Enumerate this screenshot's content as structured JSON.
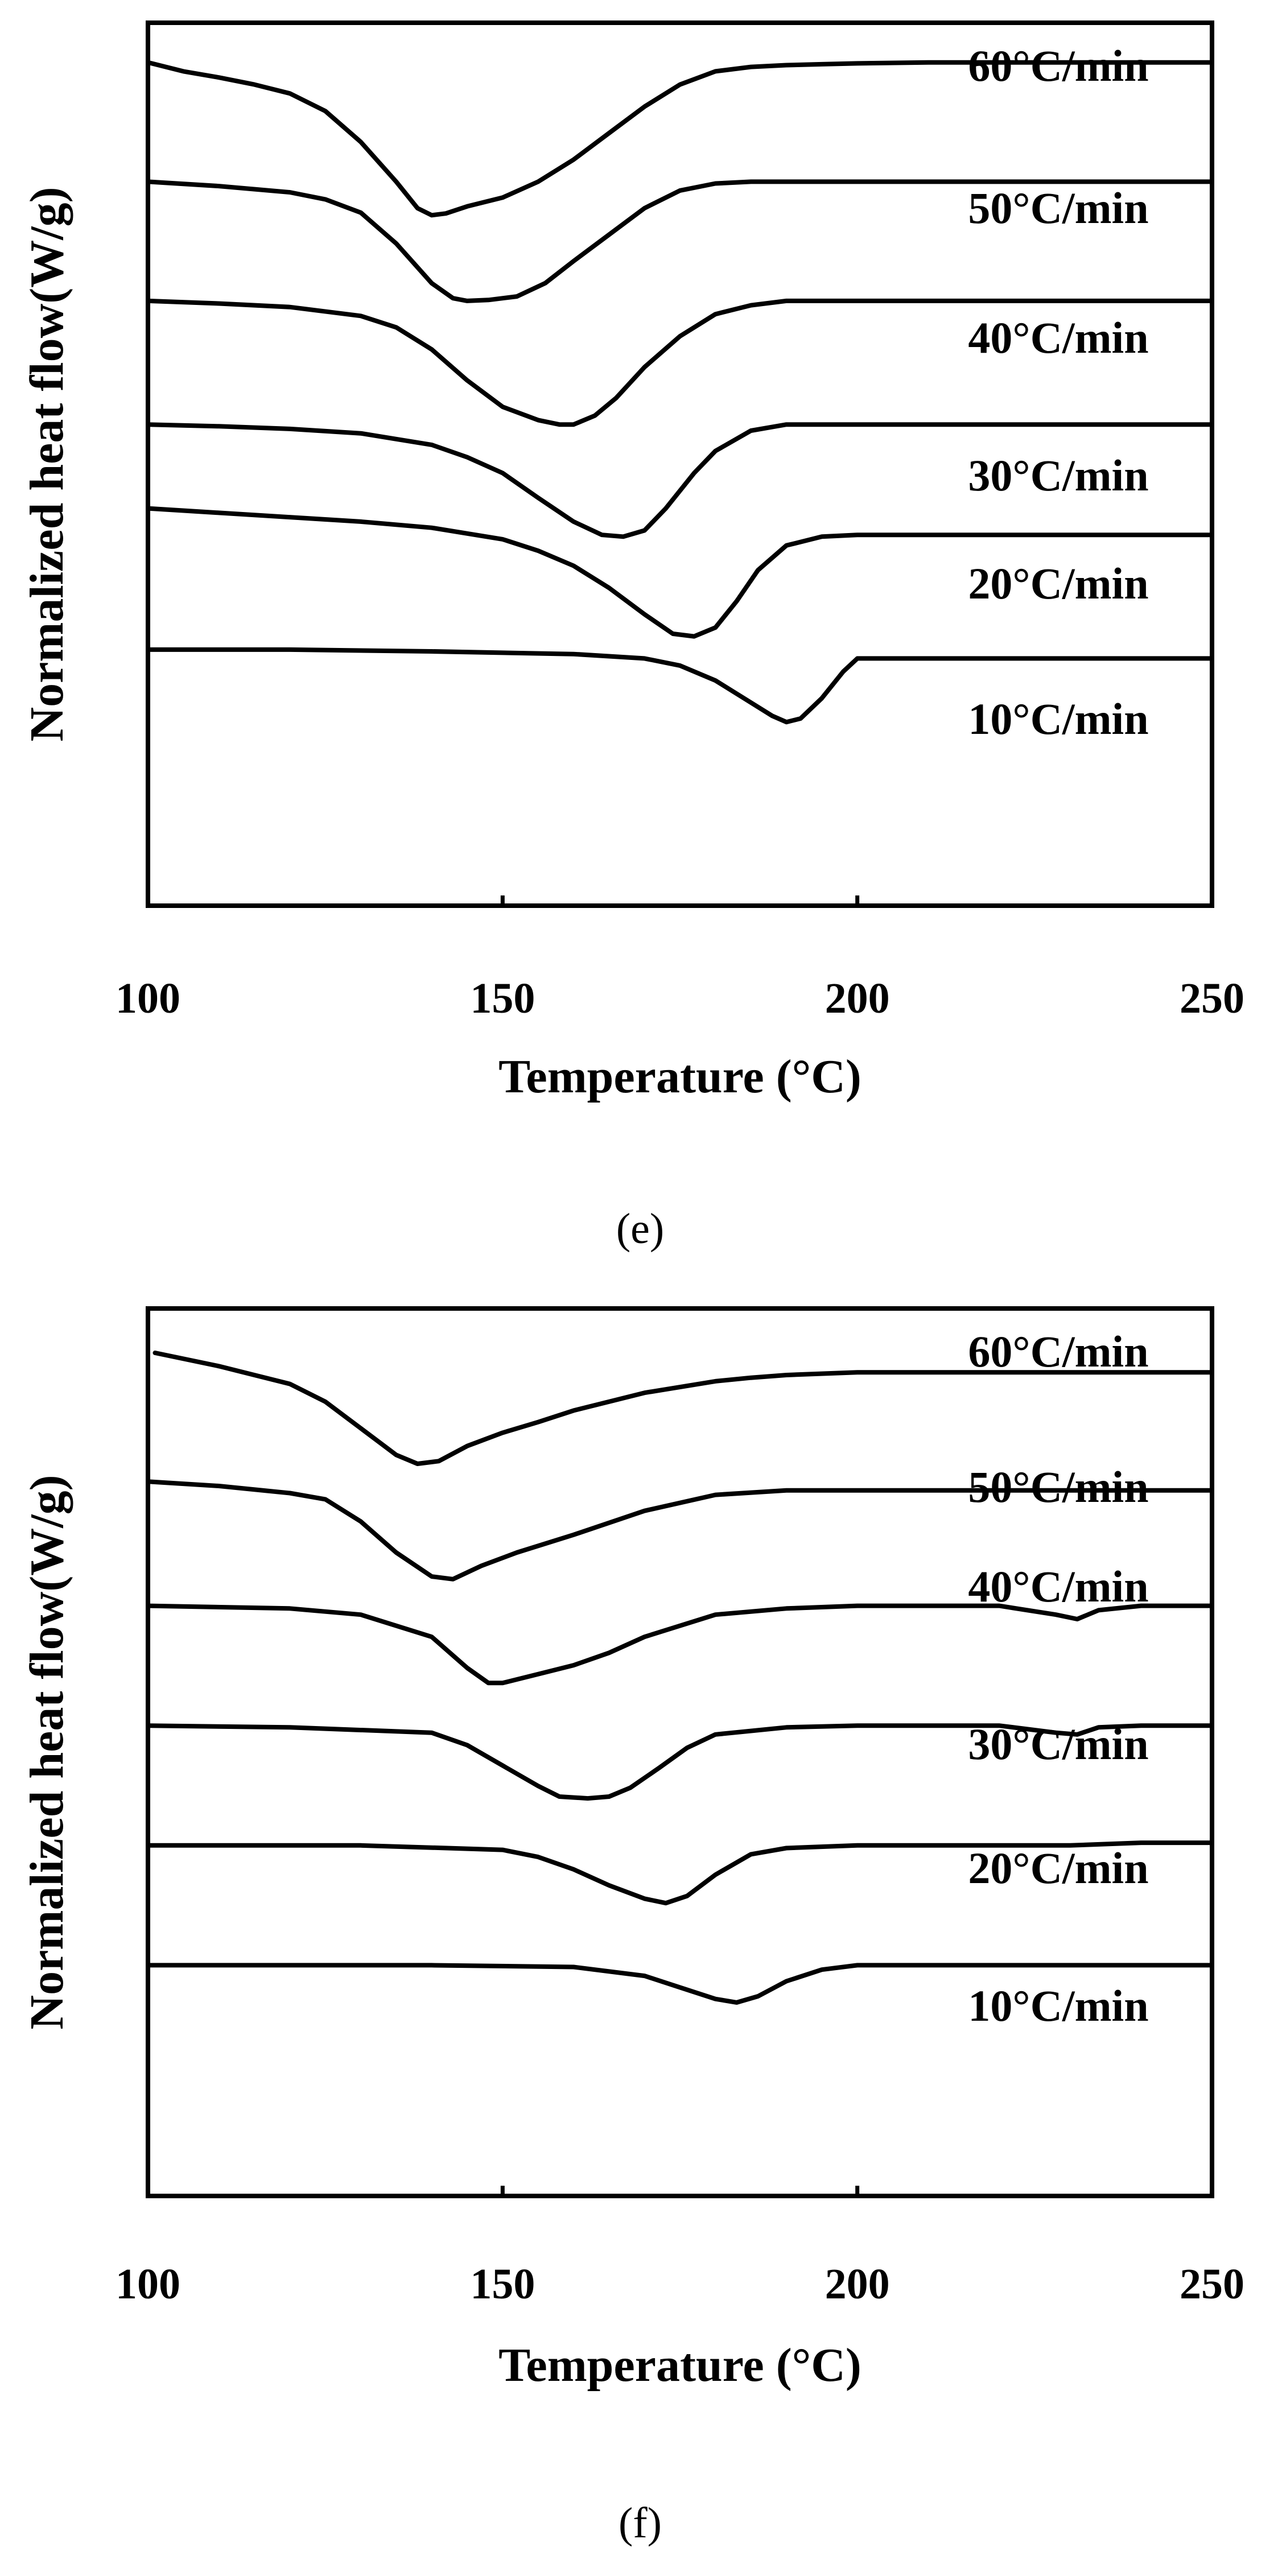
{
  "chart_data": [
    {
      "type": "line",
      "panel_caption": "(e)",
      "xlabel": "Temperature (°C)",
      "ylabel": "Normalized heat flow(W/g)",
      "xlim": [
        100,
        250
      ],
      "xticks": [
        100,
        150,
        200,
        250
      ],
      "ylim": [
        0,
        10
      ],
      "y_ticks_shown": false,
      "grid": false,
      "legend": "inline labels above each curve",
      "series": [
        {
          "name": "60°C/min",
          "x": [
            100,
            105,
            110,
            115,
            120,
            125,
            130,
            135,
            138,
            140,
            142,
            145,
            150,
            155,
            160,
            165,
            170,
            175,
            180,
            185,
            190,
            195,
            200,
            210,
            220,
            230,
            250
          ],
          "y": [
            9.55,
            9.45,
            9.38,
            9.3,
            9.2,
            9.0,
            8.65,
            8.2,
            7.9,
            7.82,
            7.84,
            7.92,
            8.02,
            8.2,
            8.45,
            8.75,
            9.05,
            9.3,
            9.45,
            9.5,
            9.52,
            9.53,
            9.54,
            9.55,
            9.55,
            9.55,
            9.55
          ]
        },
        {
          "name": "50°C/min",
          "x": [
            100,
            110,
            120,
            125,
            130,
            135,
            140,
            143,
            145,
            148,
            152,
            156,
            160,
            165,
            170,
            175,
            180,
            185,
            190,
            200,
            210,
            230,
            250
          ],
          "y": [
            8.2,
            8.15,
            8.08,
            8.0,
            7.85,
            7.5,
            7.05,
            6.88,
            6.85,
            6.86,
            6.9,
            7.05,
            7.3,
            7.6,
            7.9,
            8.1,
            8.18,
            8.2,
            8.2,
            8.2,
            8.2,
            8.2,
            8.2
          ]
        },
        {
          "name": "40°C/min",
          "x": [
            100,
            110,
            120,
            130,
            135,
            140,
            145,
            150,
            155,
            158,
            160,
            163,
            166,
            170,
            175,
            180,
            185,
            190,
            200,
            220,
            250
          ],
          "y": [
            6.85,
            6.82,
            6.78,
            6.68,
            6.55,
            6.3,
            5.95,
            5.65,
            5.5,
            5.45,
            5.45,
            5.55,
            5.75,
            6.1,
            6.45,
            6.7,
            6.8,
            6.85,
            6.85,
            6.85,
            6.85
          ]
        },
        {
          "name": "30°C/min",
          "x": [
            100,
            110,
            120,
            130,
            140,
            145,
            150,
            155,
            160,
            164,
            167,
            170,
            173,
            177,
            180,
            185,
            190,
            200,
            220,
            250
          ],
          "y": [
            5.45,
            5.43,
            5.4,
            5.35,
            5.22,
            5.08,
            4.9,
            4.62,
            4.35,
            4.2,
            4.18,
            4.25,
            4.5,
            4.9,
            5.15,
            5.38,
            5.45,
            5.45,
            5.45,
            5.45
          ]
        },
        {
          "name": "20°C/min",
          "x": [
            100,
            110,
            120,
            130,
            140,
            150,
            155,
            160,
            165,
            170,
            174,
            177,
            180,
            183,
            186,
            190,
            195,
            200,
            220,
            250
          ],
          "y": [
            4.5,
            4.45,
            4.4,
            4.35,
            4.28,
            4.15,
            4.02,
            3.85,
            3.6,
            3.3,
            3.08,
            3.05,
            3.15,
            3.45,
            3.8,
            4.08,
            4.18,
            4.2,
            4.2,
            4.2
          ]
        },
        {
          "name": "10°C/min",
          "x": [
            100,
            120,
            140,
            160,
            170,
            175,
            180,
            185,
            188,
            190,
            192,
            195,
            198,
            200,
            210,
            230,
            250
          ],
          "y": [
            2.9,
            2.9,
            2.88,
            2.85,
            2.8,
            2.72,
            2.55,
            2.3,
            2.15,
            2.08,
            2.12,
            2.35,
            2.65,
            2.8,
            2.8,
            2.8,
            2.8
          ]
        }
      ]
    },
    {
      "type": "line",
      "panel_caption": "(f)",
      "xlabel": "Temperature (°C)",
      "ylabel": "Normalized heat flow(W/g)",
      "xlim": [
        100,
        250
      ],
      "xticks": [
        100,
        150,
        200,
        250
      ],
      "ylim": [
        0,
        10
      ],
      "y_ticks_shown": false,
      "grid": false,
      "legend": "inline labels above each curve",
      "series": [
        {
          "name": "60°C/min",
          "x": [
            101,
            110,
            120,
            125,
            130,
            135,
            138,
            141,
            145,
            150,
            155,
            160,
            170,
            180,
            185,
            190,
            200,
            220,
            250
          ],
          "y": [
            9.5,
            9.35,
            9.15,
            8.95,
            8.65,
            8.35,
            8.25,
            8.28,
            8.45,
            8.6,
            8.72,
            8.85,
            9.05,
            9.18,
            9.22,
            9.25,
            9.28,
            9.28,
            9.28
          ]
        },
        {
          "name": "50°C/min",
          "x": [
            100,
            110,
            120,
            125,
            130,
            135,
            140,
            143,
            147,
            152,
            160,
            170,
            180,
            190,
            200,
            220,
            250
          ],
          "y": [
            8.05,
            8.0,
            7.92,
            7.85,
            7.6,
            7.25,
            6.98,
            6.95,
            7.1,
            7.25,
            7.45,
            7.72,
            7.9,
            7.95,
            7.95,
            7.95,
            7.95
          ]
        },
        {
          "name": "40°C/min",
          "x": [
            100,
            120,
            130,
            140,
            145,
            148,
            150,
            155,
            160,
            165,
            170,
            180,
            190,
            200,
            220,
            228,
            231,
            234,
            240,
            250
          ],
          "y": [
            6.65,
            6.62,
            6.55,
            6.3,
            5.95,
            5.78,
            5.78,
            5.88,
            5.98,
            6.12,
            6.3,
            6.55,
            6.62,
            6.65,
            6.65,
            6.55,
            6.5,
            6.6,
            6.65,
            6.65
          ]
        },
        {
          "name": "30°C/min",
          "x": [
            100,
            120,
            140,
            145,
            150,
            155,
            158,
            162,
            165,
            168,
            172,
            176,
            180,
            190,
            200,
            220,
            228,
            231,
            234,
            240,
            250
          ],
          "y": [
            5.3,
            5.28,
            5.22,
            5.08,
            4.85,
            4.62,
            4.5,
            4.48,
            4.5,
            4.6,
            4.82,
            5.05,
            5.2,
            5.28,
            5.3,
            5.3,
            5.22,
            5.2,
            5.28,
            5.3,
            5.3
          ]
        },
        {
          "name": "20°C/min",
          "x": [
            100,
            130,
            150,
            155,
            160,
            165,
            170,
            173,
            176,
            180,
            185,
            190,
            200,
            230,
            240,
            250
          ],
          "y": [
            3.95,
            3.95,
            3.9,
            3.82,
            3.68,
            3.5,
            3.35,
            3.3,
            3.38,
            3.62,
            3.85,
            3.92,
            3.95,
            3.95,
            3.98,
            3.98
          ]
        },
        {
          "name": "10°C/min",
          "x": [
            100,
            140,
            160,
            170,
            175,
            180,
            183,
            186,
            190,
            195,
            200,
            220,
            250
          ],
          "y": [
            2.6,
            2.6,
            2.58,
            2.48,
            2.35,
            2.22,
            2.18,
            2.25,
            2.42,
            2.55,
            2.6,
            2.6,
            2.6
          ]
        }
      ]
    }
  ]
}
